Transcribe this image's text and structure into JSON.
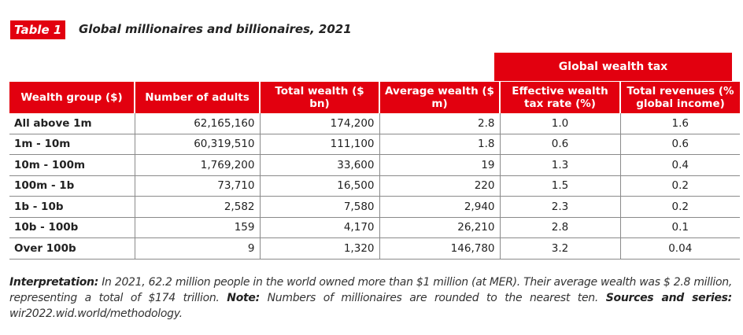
{
  "tag": "Table 1",
  "title": "Global millionaires and billionaires, 2021",
  "group_header": "Global wealth tax",
  "columns": [
    "Wealth group ($)",
    "Number of adults",
    "Total wealth ($ bn)",
    "Average wealth ($ m)",
    "Effective wealth tax rate (%)",
    "Total revenues (% global income)"
  ],
  "rows": [
    [
      "All above 1m",
      "62,165,160",
      "174,200",
      "2.8",
      "1.0",
      "1.6"
    ],
    [
      "1m - 10m",
      "60,319,510",
      "111,100",
      "1.8",
      "0.6",
      "0.6"
    ],
    [
      "10m - 100m",
      "1,769,200",
      "33,600",
      "19",
      "1.3",
      "0.4"
    ],
    [
      "100m - 1b",
      "73,710",
      "16,500",
      "220",
      "1.5",
      "0.2"
    ],
    [
      "1b - 10b",
      "2,582",
      "7,580",
      "2,940",
      "2.3",
      "0.2"
    ],
    [
      "10b - 100b",
      "159",
      "4,170",
      "26,210",
      "2.8",
      "0.1"
    ],
    [
      "Over 100b",
      "9",
      "1,320",
      "146,780",
      "3.2",
      "0.04"
    ]
  ],
  "footer": {
    "interp_label": "Interpretation:",
    "interp_text": " In 2021, 62.2 million people in the world owned more than $1 million (at MER). Their average wealth was $ 2.8 million, representing a total of $174 trillion. ",
    "note_label": "Note:",
    "note_text": " Numbers of millionaires are rounded to the nearest ten. ",
    "sources_label": "Sources and series:",
    "sources_text": " wir2022.wid.world/methodology."
  },
  "colors": {
    "accent": "#e2000f"
  }
}
